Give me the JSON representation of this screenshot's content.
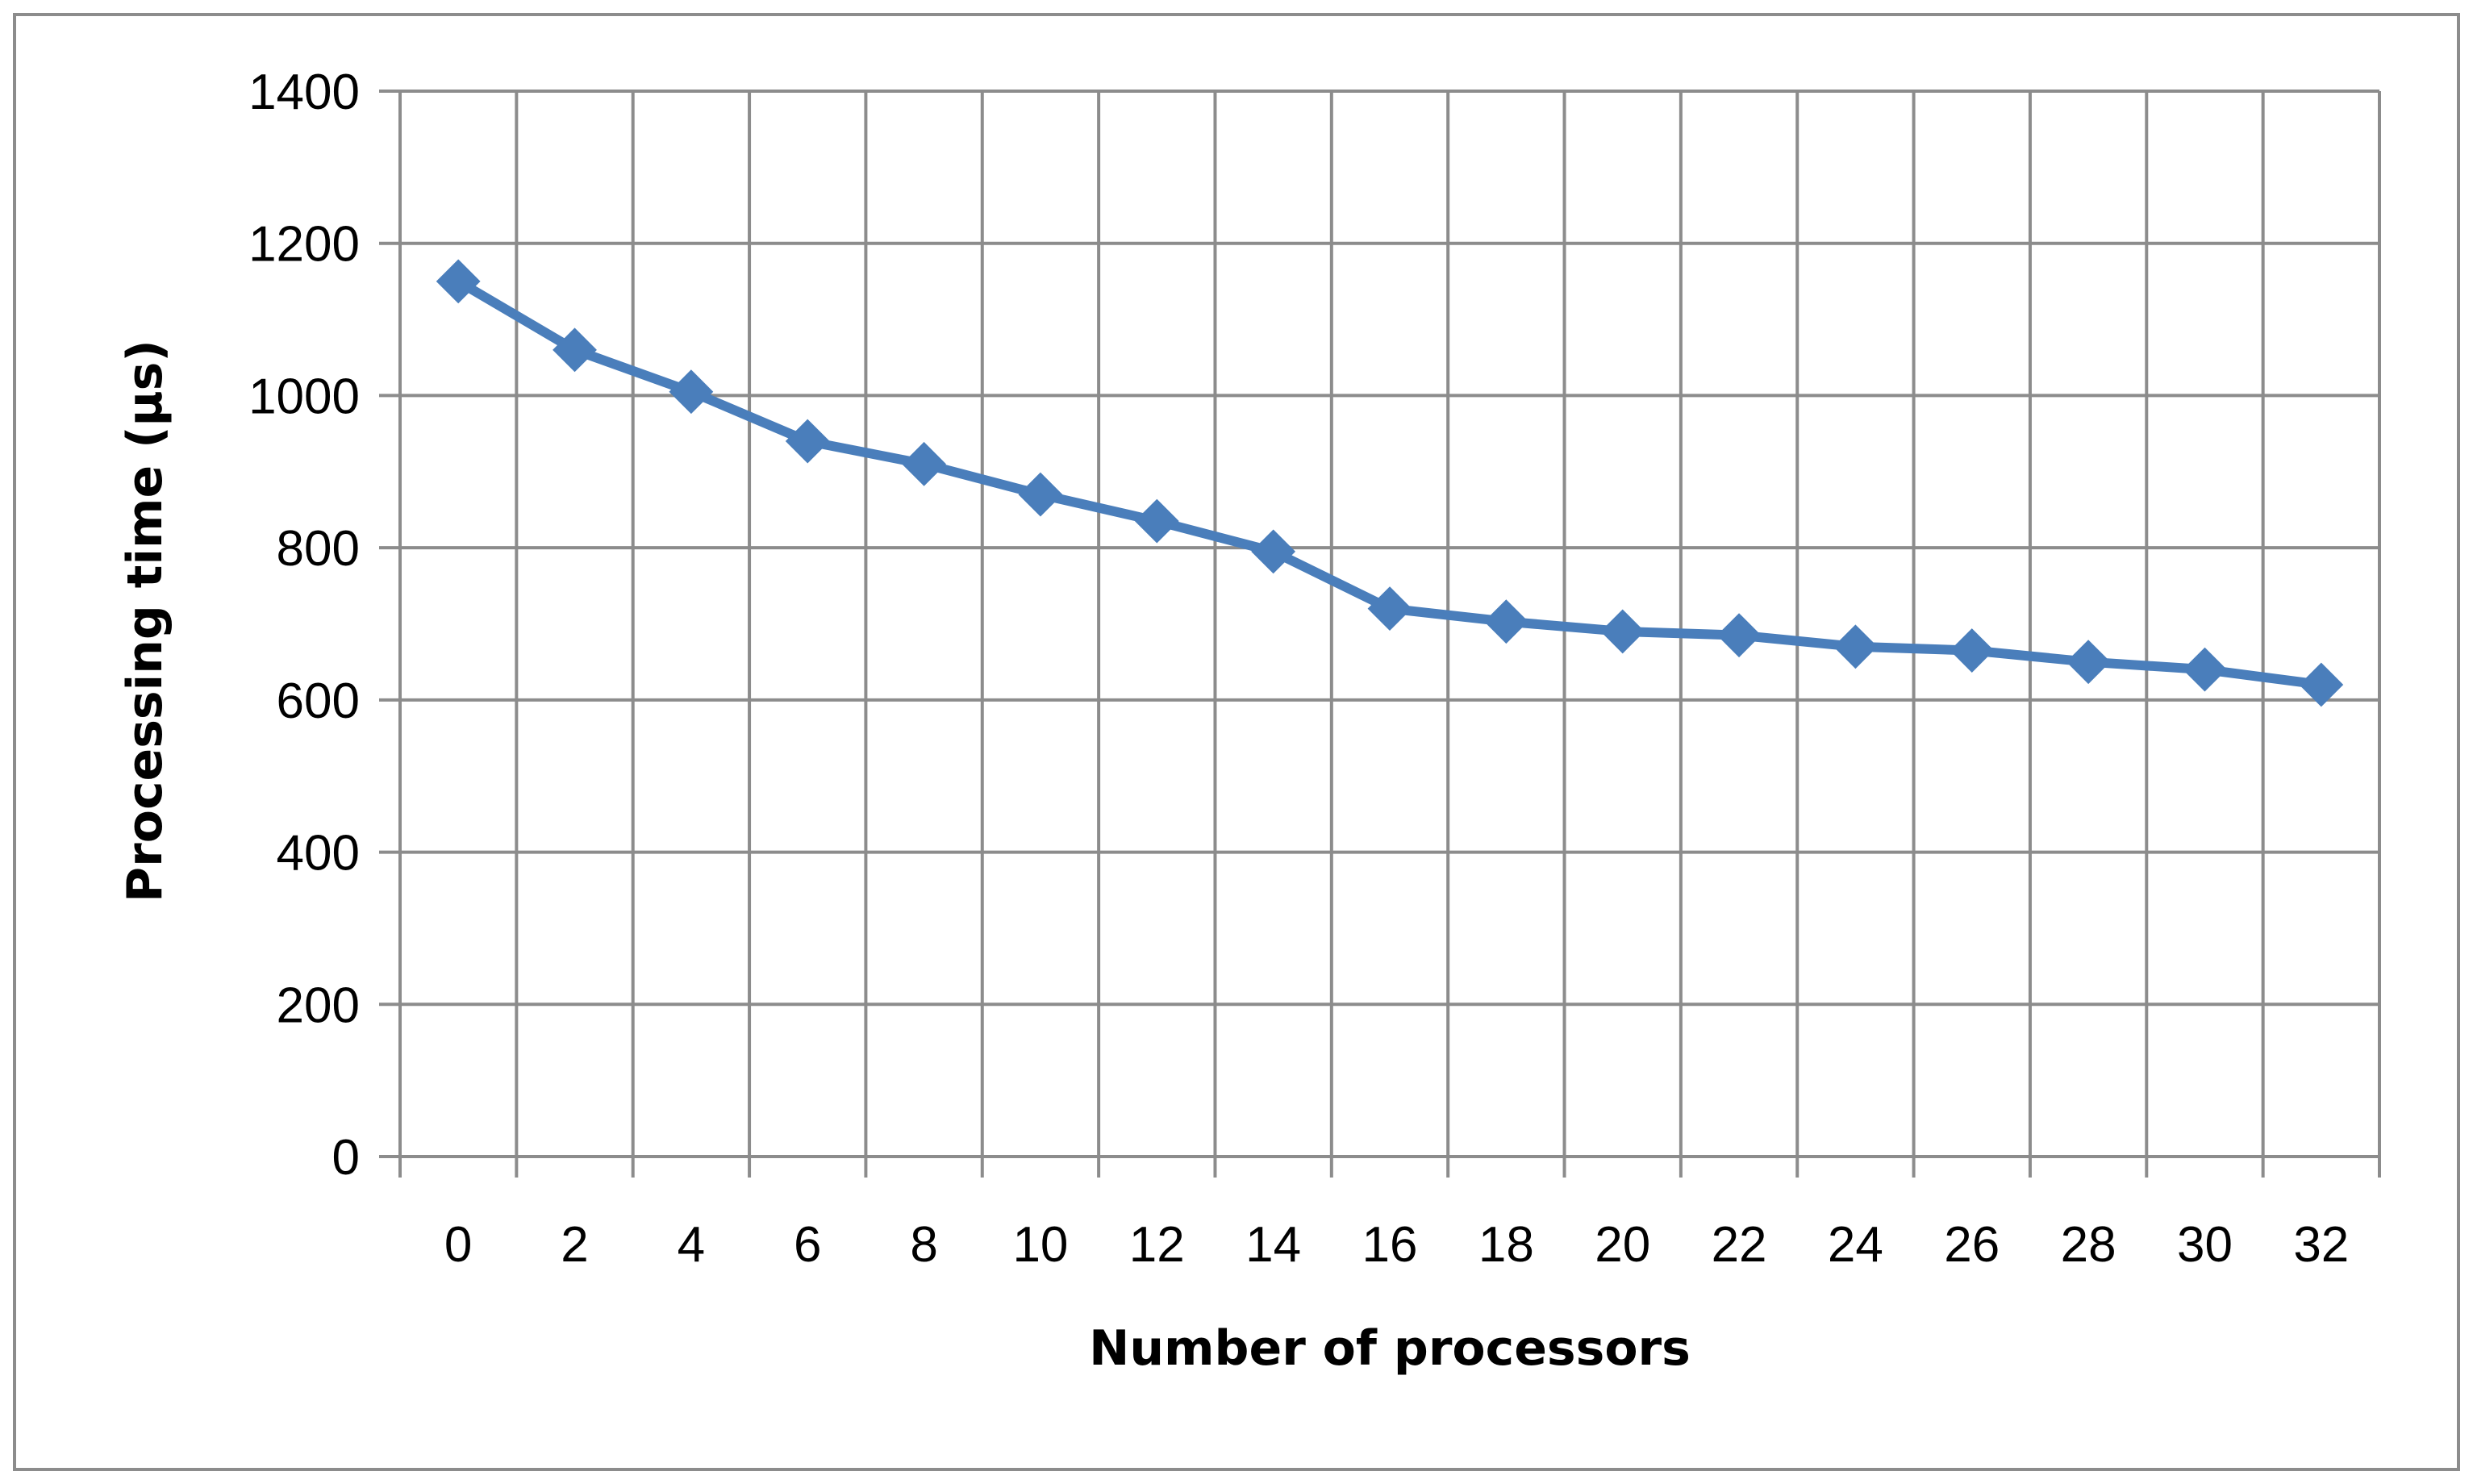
{
  "chart_data": {
    "type": "line",
    "title": "",
    "xlabel": "Number of processors",
    "ylabel": "Processing time  (µs)",
    "categories": [
      "0",
      "2",
      "4",
      "6",
      "8",
      "10",
      "12",
      "14",
      "16",
      "18",
      "20",
      "22",
      "24",
      "26",
      "28",
      "30",
      "32"
    ],
    "y_ticks": [
      "0",
      "200",
      "400",
      "600",
      "800",
      "1000",
      "1200",
      "1400"
    ],
    "ylim": [
      0,
      1400
    ],
    "grid": true,
    "legend": "none",
    "series": [
      {
        "values": [
          1150,
          1060,
          1005,
          940,
          910,
          870,
          835,
          795,
          720,
          703,
          690,
          685,
          670,
          665,
          650,
          640,
          620
        ],
        "color": "#4A7EBB",
        "marker": "diamond"
      }
    ]
  },
  "colors": {
    "grid": "#8C8C8C",
    "frame": "#8C8C8C",
    "series": "#4A7EBB"
  }
}
